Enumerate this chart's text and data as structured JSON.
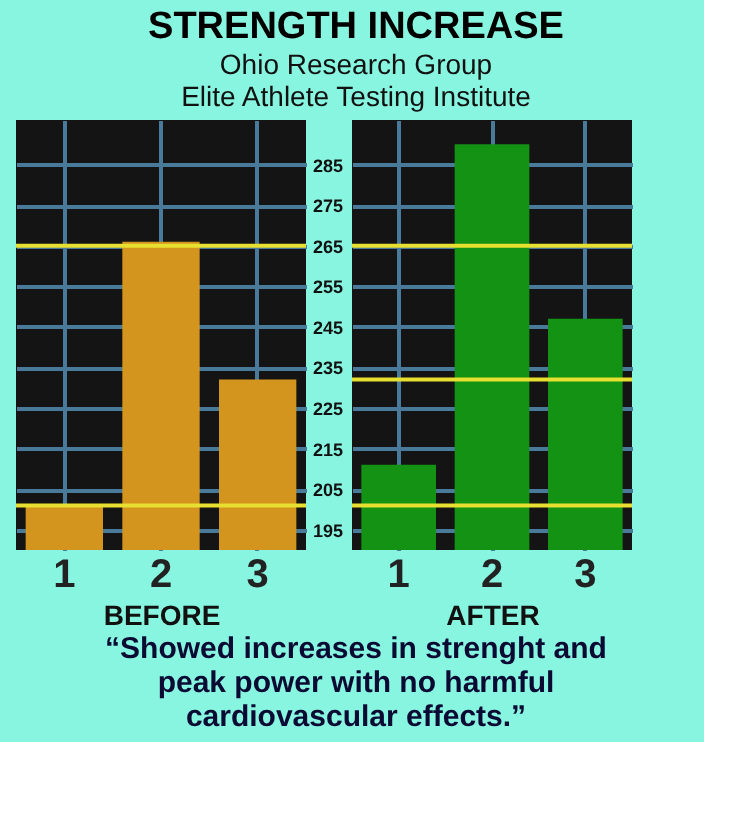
{
  "chart_data": [
    {
      "type": "bar",
      "title": "STRENGTH INCREASE",
      "subtitle": "Ohio Research Group\nElite Athlete Testing Institute",
      "annotations": [
        "“Showed increases in strenght and peak power with no harmful cardiovascular effects.”"
      ],
      "xlabel": "BEFORE",
      "categories": [
        "1",
        "2",
        "3"
      ],
      "values": [
        201,
        266,
        232
      ],
      "color": "#d4951f",
      "ylim": [
        190,
        296
      ],
      "yticks": [
        195,
        205,
        215,
        225,
        235,
        245,
        255,
        265,
        275,
        285
      ],
      "grid": true,
      "ref_lines": [
        {
          "axis": "y",
          "value": 201,
          "color": "#e8e030"
        },
        {
          "axis": "y",
          "value": 265,
          "color": "#e8e030"
        }
      ]
    },
    {
      "type": "bar",
      "xlabel": "AFTER",
      "categories": [
        "1",
        "2",
        "3"
      ],
      "values": [
        211,
        290,
        247
      ],
      "color": "#139213",
      "ylim": [
        190,
        296
      ],
      "yticks": [
        195,
        205,
        215,
        225,
        235,
        245,
        255,
        265,
        275,
        285
      ],
      "grid": true,
      "tick_labels": "x",
      "ref_lines": [
        {
          "axis": "y",
          "value": 201,
          "color": "#e8e030"
        },
        {
          "axis": "y",
          "value": 265,
          "color": "#e8e030"
        },
        {
          "axis": "y",
          "value": 232,
          "color": "#e8e030"
        }
      ]
    }
  ]
}
